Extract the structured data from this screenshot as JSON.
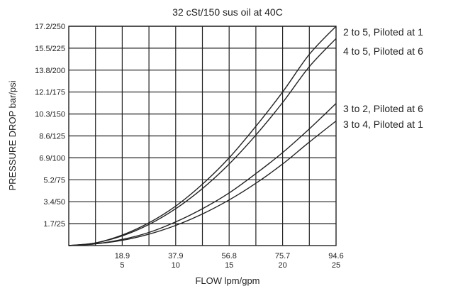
{
  "chart_data": {
    "type": "line",
    "title": "32 cSt/150 sus oil at 40C",
    "xlabel": "FLOW lpm/gpm",
    "ylabel": "PRESSURE DROP bar/psi",
    "xlim": [
      0,
      25
    ],
    "ylim": [
      0,
      250
    ],
    "grid": true,
    "legend": "right",
    "x_ticks": [
      {
        "value": 5,
        "lpm": "18.9",
        "gpm": "5"
      },
      {
        "value": 10,
        "lpm": "37.9",
        "gpm": "10"
      },
      {
        "value": 15,
        "lpm": "56.8",
        "gpm": "15"
      },
      {
        "value": 20,
        "lpm": "75.7",
        "gpm": "20"
      },
      {
        "value": 25,
        "lpm": "94.6",
        "gpm": "25"
      }
    ],
    "y_ticks": [
      {
        "value": 25,
        "label": "1.7/25"
      },
      {
        "value": 50,
        "label": "3.4/50"
      },
      {
        "value": 75,
        "label": "5.2/75"
      },
      {
        "value": 100,
        "label": "6.9/100"
      },
      {
        "value": 125,
        "label": "8.6/125"
      },
      {
        "value": 150,
        "label": "10.3/150"
      },
      {
        "value": 175,
        "label": "12.1/175"
      },
      {
        "value": 200,
        "label": "13.8/200"
      },
      {
        "value": 225,
        "label": "15.5/225"
      },
      {
        "value": 250,
        "label": "17.2/250"
      }
    ],
    "x": [
      0,
      2.5,
      5,
      7.5,
      10,
      12.5,
      15,
      17.5,
      20,
      22.5,
      25
    ],
    "series": [
      {
        "name": "2 to 5, Piloted at 1",
        "values": [
          0,
          3,
          12,
          26,
          45,
          70,
          100,
          136,
          175,
          218,
          250
        ]
      },
      {
        "name": "4 to 5, Piloted at 6",
        "values": [
          0,
          3,
          11,
          24,
          42,
          65,
          93,
          126,
          163,
          204,
          236
        ]
      },
      {
        "name": "3 to 2, Piloted at 6",
        "values": [
          0,
          2,
          7,
          15,
          27,
          42,
          60,
          82,
          106,
          133,
          162
        ]
      },
      {
        "name": "3 to 4, Piloted at 1",
        "values": [
          0,
          2,
          6,
          13,
          23,
          36,
          52,
          71,
          93,
          118,
          142
        ]
      }
    ]
  }
}
